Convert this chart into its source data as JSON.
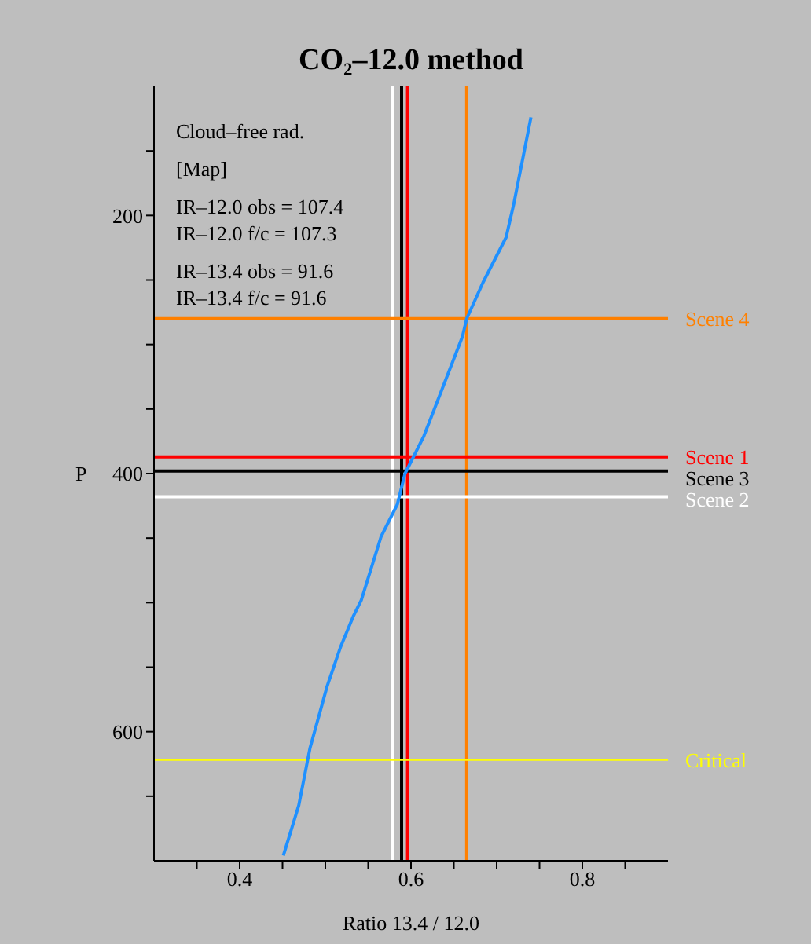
{
  "chart_data": {
    "type": "line",
    "title": "CO₂–12.0 method",
    "xlabel": "Ratio 13.4 / 12.0",
    "ylabel": "P",
    "annotations": [
      "Cloud–free rad.",
      "[Map]",
      "IR–12.0 obs = 107.4",
      "IR–12.0 f/c = 107.3",
      "IR–13.4 obs = 91.6",
      "IR–13.4 f/c = 91.6"
    ],
    "series": [
      {
        "color": "#1e90ff",
        "x": [
          0.74,
          0.72,
          0.711,
          0.684,
          0.665,
          0.66,
          0.615,
          0.593,
          0.584,
          0.565,
          0.542,
          0.533,
          0.518,
          0.502,
          0.482,
          0.469,
          0.451
        ],
        "values": [
          124,
          191,
          217,
          252,
          280,
          294,
          371,
          400,
          424,
          449,
          498,
          510,
          534,
          565,
          613,
          657,
          696
        ]
      }
    ],
    "xlim": [
      0.3,
      0.9
    ],
    "xticks": [
      {
        "value": 0.35,
        "label": null
      },
      0.4,
      {
        "value": 0.45,
        "label": null
      },
      {
        "value": 0.5,
        "label": null
      },
      {
        "value": 0.55,
        "label": null
      },
      0.6,
      {
        "value": 0.65,
        "label": null
      },
      {
        "value": 0.7,
        "label": null
      },
      {
        "value": 0.75,
        "label": null
      },
      0.8,
      {
        "value": 0.85,
        "label": null
      }
    ],
    "ylim": [
      700,
      100
    ],
    "yticks": [
      {
        "value": 150,
        "label": null
      },
      200,
      {
        "value": 250,
        "label": null
      },
      {
        "value": 300,
        "label": null
      },
      {
        "value": 350,
        "label": null
      },
      400,
      {
        "value": 450,
        "label": null
      },
      {
        "value": 500,
        "label": null
      },
      {
        "value": 550,
        "label": null
      },
      600,
      {
        "value": 650,
        "label": null
      }
    ],
    "ref_lines": [
      {
        "axis": "x",
        "value": 0.578,
        "color": "#ffffff"
      },
      {
        "axis": "x",
        "value": 0.589,
        "color": "#000000"
      },
      {
        "axis": "x",
        "value": 0.596,
        "color": "#ff0000"
      },
      {
        "axis": "x",
        "value": 0.665,
        "color": "#ff8000"
      },
      {
        "axis": "y",
        "value": 280,
        "label": "Scene 4",
        "color": "#ff8000"
      },
      {
        "axis": "y",
        "value": 387,
        "label": "Scene 1",
        "color": "#ff0000"
      },
      {
        "axis": "y",
        "value": 398,
        "label": "Scene 3",
        "color": "#000000"
      },
      {
        "axis": "y",
        "value": 418,
        "label": "Scene 2",
        "color": "#ffffff"
      },
      {
        "axis": "y",
        "value": 622,
        "label": "Critical",
        "color": "#ffff00"
      }
    ],
    "grid": false,
    "legend": false,
    "marker": "none",
    "line_style": "solid"
  }
}
